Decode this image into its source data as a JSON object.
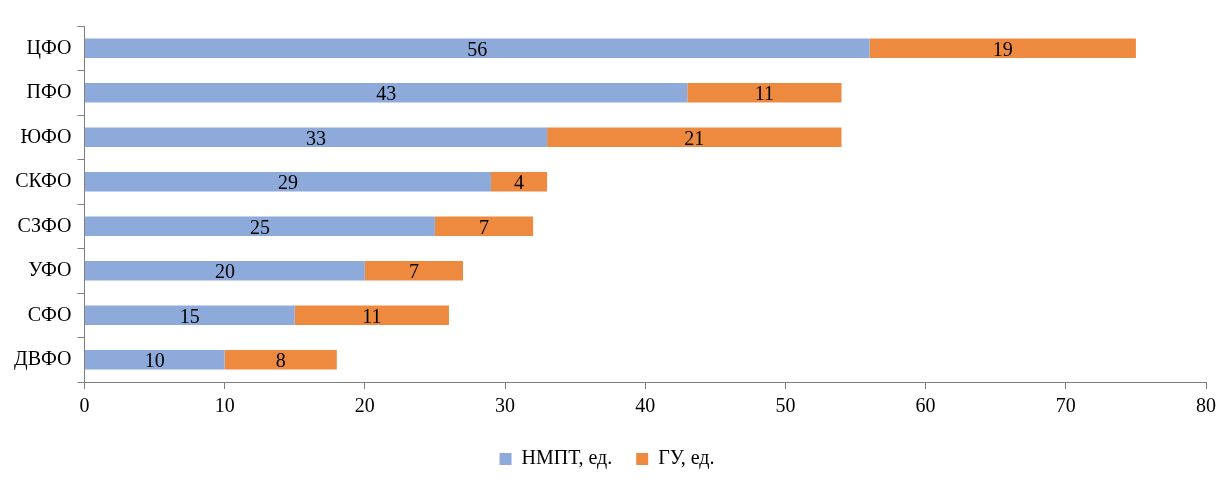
{
  "chart_data": {
    "type": "bar",
    "orientation": "horizontal",
    "stacked": true,
    "data_labels": true,
    "legend": "bottom",
    "categories": [
      "ЦФО",
      "ПФО",
      "ЮФО",
      "СКФО",
      "СЗФО",
      "УФО",
      "СФО",
      "ДВФО"
    ],
    "series": [
      {
        "name": "НМПТ, ед.",
        "color": "#8eaadb",
        "values": [
          56,
          43,
          33,
          29,
          25,
          20,
          15,
          10
        ]
      },
      {
        "name": "ГУ, ед.",
        "color": "#ed8a3f",
        "values": [
          19,
          11,
          21,
          4,
          7,
          7,
          11,
          8
        ]
      }
    ],
    "xlim": [
      0,
      80
    ],
    "xticks": [
      0,
      10,
      20,
      30,
      40,
      50,
      60,
      70,
      80
    ]
  }
}
